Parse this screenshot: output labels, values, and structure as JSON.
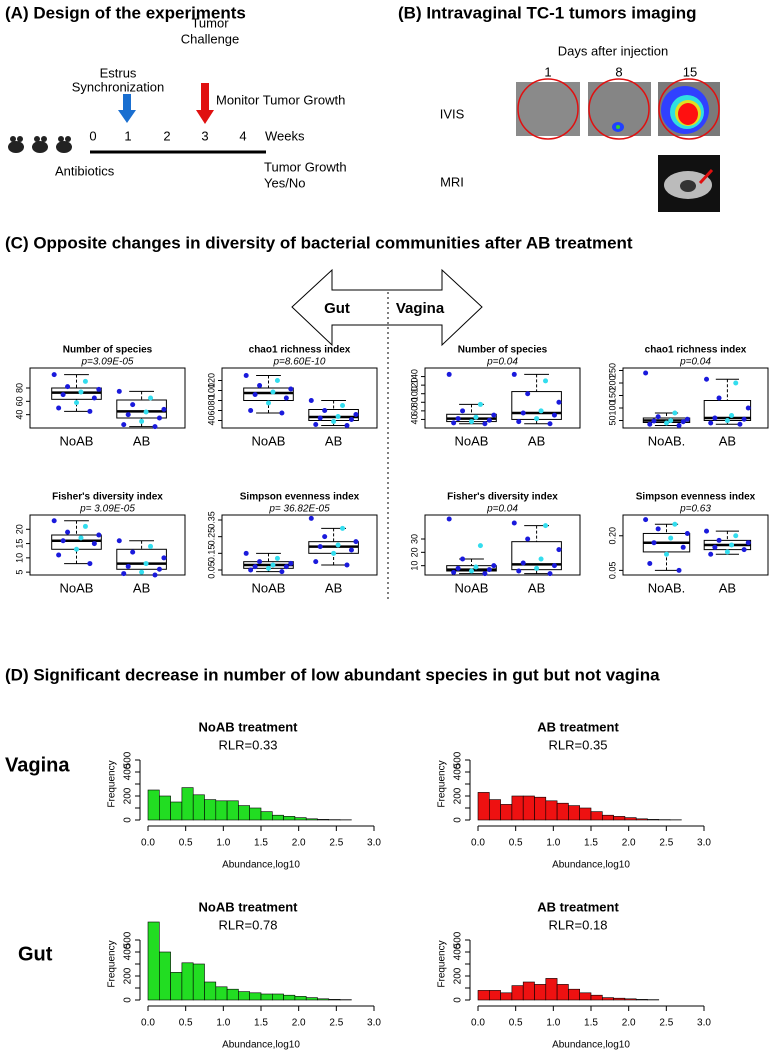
{
  "panel_a": {
    "title": "(A) Design of the experiments",
    "estrus": "Estrus",
    "synchronization": "Synchronization",
    "tumor": "Tumor",
    "challenge": "Challenge",
    "monitor": "Monitor Tumor Growth",
    "timeline": [
      0,
      1,
      2,
      3,
      4
    ],
    "weeks": "Weeks",
    "antibiotics": "Antibiotics",
    "tumor_growth": "Tumor  Growth",
    "yes_no": "Yes/No"
  },
  "panel_b": {
    "title": "(B) Intravaginal TC-1 tumors imaging",
    "days_label": "Days after injection",
    "days": [
      1,
      8,
      15
    ],
    "ivis": "IVIS",
    "mri": "MRI"
  },
  "panel_c": {
    "title": "(C) Opposite changes in diversity of bacterial communities after AB treatment",
    "gut": "Gut",
    "vagina": "Vagina"
  },
  "panel_d": {
    "title": "(D) Significant decrease in number of low abundant species in gut but not vagina",
    "rows": [
      "Vagina",
      "Gut"
    ]
  },
  "chart_data": [
    {
      "type": "boxplot",
      "title": "Number of species",
      "annotation": "p=3.09E-05",
      "categories": [
        "NoAB",
        "AB"
      ],
      "ylim": [
        20,
        110
      ],
      "yticks": [
        40,
        60,
        80
      ],
      "boxes": [
        {
          "whisker_low": 45,
          "q1": 63,
          "median": 73,
          "q3": 80,
          "whisker_high": 100,
          "points": [
            100,
            90,
            82,
            78,
            74,
            70,
            65,
            58,
            50,
            45
          ]
        },
        {
          "whisker_low": 22,
          "q1": 35,
          "median": 45,
          "q3": 62,
          "whisker_high": 75,
          "points": [
            75,
            65,
            55,
            48,
            44,
            40,
            35,
            30,
            25,
            22
          ]
        }
      ]
    },
    {
      "type": "boxplot",
      "title": "chao1 richness index",
      "annotation": "p=8.60E-10",
      "categories": [
        "NoAB",
        "AB"
      ],
      "ylim": [
        25,
        145
      ],
      "yticks": [
        40,
        60,
        80,
        100,
        120
      ],
      "boxes": [
        {
          "whisker_low": 55,
          "q1": 80,
          "median": 95,
          "q3": 105,
          "whisker_high": 130,
          "points": [
            130,
            120,
            110,
            103,
            97,
            92,
            85,
            75,
            60,
            55
          ]
        },
        {
          "whisker_low": 30,
          "q1": 40,
          "median": 47,
          "q3": 62,
          "whisker_high": 80,
          "points": [
            80,
            70,
            60,
            52,
            48,
            45,
            42,
            38,
            32,
            30
          ]
        }
      ]
    },
    {
      "type": "boxplot",
      "title": "Number of species",
      "annotation": "p=0.04",
      "categories": [
        "NoAB",
        "AB"
      ],
      "ylim": [
        20,
        160
      ],
      "yticks": [
        40,
        60,
        80,
        100,
        120,
        140
      ],
      "boxes": [
        {
          "whisker_low": 30,
          "q1": 35,
          "median": 42,
          "q3": 52,
          "whisker_high": 75,
          "points": [
            145,
            75,
            60,
            50,
            45,
            42,
            38,
            35,
            32,
            30
          ]
        },
        {
          "whisker_low": 30,
          "q1": 40,
          "median": 55,
          "q3": 105,
          "whisker_high": 145,
          "points": [
            145,
            130,
            100,
            80,
            60,
            55,
            50,
            42,
            35,
            30
          ]
        }
      ]
    },
    {
      "type": "boxplot",
      "title": "chao1 richness index",
      "annotation": "p=0.04",
      "categories": [
        "NoAB.",
        "AB"
      ],
      "ylim": [
        20,
        260
      ],
      "yticks": [
        50,
        100,
        150,
        200,
        250
      ],
      "boxes": [
        {
          "whisker_low": 30,
          "q1": 42,
          "median": 50,
          "q3": 60,
          "whisker_high": 80,
          "points": [
            240,
            80,
            65,
            55,
            50,
            48,
            45,
            40,
            35,
            30
          ]
        },
        {
          "whisker_low": 35,
          "q1": 50,
          "median": 60,
          "q3": 130,
          "whisker_high": 215,
          "points": [
            215,
            200,
            140,
            100,
            70,
            60,
            55,
            50,
            40,
            35
          ]
        }
      ]
    },
    {
      "type": "boxplot",
      "title": "Fisher's diversity index",
      "annotation": "p= 3.09E-05",
      "categories": [
        "NoAB",
        "AB"
      ],
      "ylim": [
        4,
        25
      ],
      "yticks": [
        5,
        10,
        15,
        20
      ],
      "boxes": [
        {
          "whisker_low": 8,
          "q1": 13,
          "median": 16,
          "q3": 18,
          "whisker_high": 23,
          "points": [
            23,
            21,
            19,
            18,
            17,
            16,
            15,
            13,
            11,
            8
          ]
        },
        {
          "whisker_low": 4,
          "q1": 6,
          "median": 8,
          "q3": 13,
          "whisker_high": 16,
          "points": [
            16,
            14,
            12,
            10,
            8,
            7,
            6,
            5,
            4.5,
            4
          ]
        }
      ]
    },
    {
      "type": "boxplot",
      "title": "Simpson evenness index",
      "annotation": "p= 36.82E-05",
      "categories": [
        "NoAB",
        "AB"
      ],
      "ylim": [
        0.02,
        0.38
      ],
      "yticks": [
        0.05,
        0.15,
        0.25,
        0.35
      ],
      "boxes": [
        {
          "whisker_low": 0.04,
          "q1": 0.06,
          "median": 0.08,
          "q3": 0.1,
          "whisker_high": 0.15,
          "points": [
            0.15,
            0.12,
            0.1,
            0.09,
            0.08,
            0.07,
            0.07,
            0.06,
            0.05,
            0.04
          ]
        },
        {
          "whisker_low": 0.08,
          "q1": 0.15,
          "median": 0.19,
          "q3": 0.22,
          "whisker_high": 0.3,
          "points": [
            0.36,
            0.3,
            0.25,
            0.22,
            0.2,
            0.19,
            0.17,
            0.15,
            0.1,
            0.08
          ]
        }
      ]
    },
    {
      "type": "boxplot",
      "title": "Fisher's diversity index",
      "annotation": "p=0.04",
      "categories": [
        "NoAB",
        "AB"
      ],
      "ylim": [
        3,
        48
      ],
      "yticks": [
        10,
        20,
        30
      ],
      "boxes": [
        {
          "whisker_low": 4,
          "q1": 6,
          "median": 7,
          "q3": 10,
          "whisker_high": 15,
          "points": [
            45,
            25,
            15,
            10,
            9,
            8,
            7,
            6,
            5,
            4
          ]
        },
        {
          "whisker_low": 4,
          "q1": 7,
          "median": 11,
          "q3": 28,
          "whisker_high": 40,
          "points": [
            42,
            40,
            30,
            22,
            15,
            12,
            10,
            8,
            6,
            4
          ]
        }
      ]
    },
    {
      "type": "boxplot",
      "title": "Simpson evenness index",
      "annotation": "p=0.63",
      "categories": [
        "NoAB.",
        "AB"
      ],
      "ylim": [
        0.03,
        0.29
      ],
      "yticks": [
        0.05,
        {
          "value": 0.2,
          "label": "0.20"
        }
      ],
      "boxes": [
        {
          "whisker_low": 0.05,
          "q1": 0.13,
          "median": 0.17,
          "q3": 0.21,
          "whisker_high": 0.25,
          "points": [
            0.27,
            0.25,
            0.23,
            0.21,
            0.19,
            0.17,
            0.15,
            0.12,
            0.08,
            0.05
          ]
        },
        {
          "whisker_low": 0.12,
          "q1": 0.14,
          "median": 0.16,
          "q3": 0.18,
          "whisker_high": 0.22,
          "points": [
            0.22,
            0.2,
            0.18,
            0.17,
            0.16,
            0.15,
            0.14,
            0.13,
            0.12
          ]
        }
      ]
    },
    {
      "type": "histogram",
      "title": "NoAB treatment",
      "annotation": "RLR=0.33",
      "annotation_color": "#000000",
      "color": "#22dd22",
      "xlabel": "Abundance,log10",
      "ylabel": "Frequency",
      "xlim": [
        0,
        3
      ],
      "ylim": [
        0,
        600
      ],
      "xticks": [
        {
          "value": 0,
          "label": "0.0"
        },
        0.5,
        {
          "value": 1,
          "label": "1.0"
        },
        1.5,
        {
          "value": 2,
          "label": "2.0"
        },
        2.5,
        {
          "value": 3,
          "label": "3.0"
        }
      ],
      "yticks": [
        0,
        100,
        200,
        300,
        400,
        500
      ],
      "bins": [
        0,
        0.15,
        0.3,
        0.45,
        0.6,
        0.75,
        0.9,
        1.05,
        1.2,
        1.35,
        1.5,
        1.65,
        1.8,
        1.95,
        2.1,
        2.25,
        2.4,
        2.55,
        2.7
      ],
      "counts": [
        250,
        200,
        150,
        270,
        210,
        170,
        160,
        160,
        120,
        100,
        70,
        40,
        30,
        20,
        10,
        5,
        3,
        2
      ]
    },
    {
      "type": "histogram",
      "title": "AB treatment",
      "annotation": "RLR=0.35",
      "annotation_color": "#000000",
      "color": "#ee1111",
      "xlabel": "Abundance,log10",
      "ylabel": "Frequency",
      "xlim": [
        0,
        3
      ],
      "ylim": [
        0,
        600
      ],
      "xticks": [
        {
          "value": 0,
          "label": "0.0"
        },
        0.5,
        {
          "value": 1,
          "label": "1.0"
        },
        1.5,
        {
          "value": 2,
          "label": "2.0"
        },
        2.5,
        {
          "value": 3,
          "label": "3.0"
        }
      ],
      "yticks": [
        0,
        100,
        200,
        300,
        400,
        500
      ],
      "bins": [
        0,
        0.15,
        0.3,
        0.45,
        0.6,
        0.75,
        0.9,
        1.05,
        1.2,
        1.35,
        1.5,
        1.65,
        1.8,
        1.95,
        2.1,
        2.25,
        2.4,
        2.55,
        2.7
      ],
      "counts": [
        230,
        170,
        130,
        200,
        200,
        190,
        160,
        140,
        120,
        100,
        70,
        40,
        30,
        20,
        10,
        5,
        3,
        2
      ]
    },
    {
      "type": "histogram",
      "title": "NoAB treatment",
      "annotation": "RLR=0.78",
      "annotation_color": "#ee1111",
      "color": "#22dd22",
      "xlabel": "Abundance,log10",
      "ylabel": "Frequency",
      "xlim": [
        0,
        3
      ],
      "ylim": [
        0,
        600
      ],
      "xticks": [
        {
          "value": 0,
          "label": "0.0"
        },
        0.5,
        {
          "value": 1,
          "label": "1.0"
        },
        1.5,
        {
          "value": 2,
          "label": "2.0"
        },
        2.5,
        {
          "value": 3,
          "label": "3.0"
        }
      ],
      "yticks": [
        0,
        100,
        200,
        300,
        400,
        500
      ],
      "bins": [
        0,
        0.15,
        0.3,
        0.45,
        0.6,
        0.75,
        0.9,
        1.05,
        1.2,
        1.35,
        1.5,
        1.65,
        1.8,
        1.95,
        2.1,
        2.25,
        2.4,
        2.55,
        2.7
      ],
      "counts": [
        650,
        400,
        230,
        310,
        300,
        150,
        110,
        90,
        70,
        60,
        50,
        50,
        40,
        30,
        20,
        10,
        5,
        3
      ]
    },
    {
      "type": "histogram",
      "title": "AB treatment",
      "annotation": "RLR=0.18",
      "annotation_color": "#ee1111",
      "color": "#ee1111",
      "xlabel": "Abundance,log10",
      "ylabel": "Frequency",
      "xlim": [
        0,
        3
      ],
      "ylim": [
        0,
        600
      ],
      "xticks": [
        {
          "value": 0,
          "label": "0.0"
        },
        0.5,
        {
          "value": 1,
          "label": "1.0"
        },
        1.5,
        {
          "value": 2,
          "label": "2.0"
        },
        2.5,
        {
          "value": 3,
          "label": "3.0"
        }
      ],
      "yticks": [
        0,
        100,
        200,
        300,
        400,
        500
      ],
      "bins": [
        0,
        0.15,
        0.3,
        0.45,
        0.6,
        0.75,
        0.9,
        1.05,
        1.2,
        1.35,
        1.5,
        1.65,
        1.8,
        1.95,
        2.1,
        2.25,
        2.4
      ],
      "counts": [
        80,
        80,
        60,
        120,
        150,
        130,
        180,
        130,
        90,
        60,
        40,
        20,
        15,
        10,
        5,
        3
      ]
    }
  ]
}
